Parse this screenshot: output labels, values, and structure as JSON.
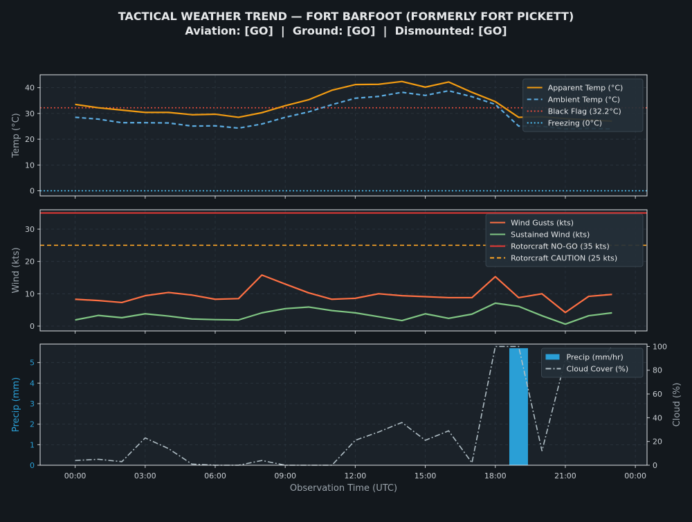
{
  "header": {
    "title": "TACTICAL WEATHER TREND — FORT BARFOOT (FORMERLY FORT PICKETT)",
    "subtitle": "Aviation: [GO]  |  Ground: [GO]  |  Dismounted: [GO]"
  },
  "colors": {
    "background": "#13181d",
    "panel": "#1b2229",
    "apparent": "#f39c12",
    "ambient": "#5dade2",
    "black_flag": "#e74c3c",
    "freezing": "#4fc3f7",
    "gusts": "#ff7043",
    "sustained": "#81c784",
    "nogo": "#e53935",
    "caution": "#ffa726",
    "precip": "#2a9fd6",
    "cloud": "#b0bec5"
  },
  "chart_data": [
    {
      "type": "line",
      "panel": "temperature",
      "ylabel": "Temp (°C)",
      "ylim": [
        -2,
        45
      ],
      "yticks": [
        0,
        10,
        20,
        30,
        40
      ],
      "grid": true,
      "legend_position": "top-right",
      "x_hours": [
        0,
        1,
        2,
        3,
        4,
        5,
        6,
        7,
        8,
        9,
        10,
        11,
        12,
        13,
        14,
        15,
        16,
        17,
        18,
        19,
        20,
        21,
        22,
        23
      ],
      "series": [
        {
          "name": "Apparent Temp (°C)",
          "style": "solid",
          "values": [
            33.5,
            32.2,
            31.3,
            30.4,
            30.4,
            29.5,
            29.7,
            28.5,
            30.3,
            33.0,
            35.3,
            39.0,
            41.2,
            41.3,
            42.4,
            40.2,
            42.2,
            38.2,
            34.6,
            28.5,
            28.7,
            28.0,
            27.5,
            27.0
          ]
        },
        {
          "name": "Ambient Temp (°C)",
          "style": "dashed",
          "values": [
            28.5,
            27.8,
            26.4,
            26.4,
            26.3,
            25.1,
            25.2,
            24.3,
            25.9,
            28.5,
            30.6,
            33.4,
            35.9,
            36.6,
            38.2,
            37.0,
            38.8,
            36.5,
            33.5,
            25.1,
            25.0,
            24.0,
            24.2,
            24.0
          ]
        }
      ],
      "thresholds": [
        {
          "name": "Black Flag (32.2°C)",
          "value": 32.2,
          "style": "dotted"
        },
        {
          "name": "Freezing (0°C)",
          "value": 0,
          "style": "dotted"
        }
      ]
    },
    {
      "type": "line",
      "panel": "wind",
      "ylabel": "Wind (kts)",
      "ylim": [
        -1.5,
        36
      ],
      "yticks": [
        0,
        10,
        20,
        30
      ],
      "grid": true,
      "legend_position": "top-right",
      "x_hours": [
        0,
        1,
        2,
        3,
        4,
        5,
        6,
        7,
        8,
        9,
        10,
        11,
        12,
        13,
        14,
        15,
        16,
        17,
        18,
        19,
        20,
        21,
        22,
        23
      ],
      "series": [
        {
          "name": "Wind Gusts (kts)",
          "style": "solid",
          "values": [
            8.3,
            7.9,
            7.3,
            9.4,
            10.4,
            9.6,
            8.3,
            8.5,
            15.8,
            13.0,
            10.3,
            8.3,
            8.6,
            10.0,
            9.4,
            9.1,
            8.8,
            8.8,
            15.3,
            8.8,
            10.0,
            4.2,
            9.2,
            9.8
          ]
        },
        {
          "name": "Sustained Wind (kts)",
          "style": "solid",
          "values": [
            1.9,
            3.3,
            2.6,
            3.8,
            3.1,
            2.2,
            2.0,
            1.9,
            4.1,
            5.4,
            5.9,
            4.8,
            4.1,
            2.9,
            1.7,
            3.8,
            2.4,
            3.7,
            7.1,
            6.1,
            3.2,
            0.6,
            3.2,
            4.1
          ]
        }
      ],
      "thresholds": [
        {
          "name": "Rotorcraft NO-GO (35 kts)",
          "value": 35,
          "style": "solid"
        },
        {
          "name": "Rotorcraft CAUTION (25 kts)",
          "value": 25,
          "style": "dashed"
        }
      ]
    },
    {
      "type": "bar",
      "panel": "precipitation",
      "ylabel": "Precip (mm)",
      "ylim": [
        0,
        5.9
      ],
      "yticks": [
        0,
        1,
        2,
        3,
        4,
        5
      ],
      "grid": true,
      "legend_position": "top-right",
      "x_hours": [
        0,
        1,
        2,
        3,
        4,
        5,
        6,
        7,
        8,
        9,
        10,
        11,
        12,
        13,
        14,
        15,
        16,
        17,
        18,
        19,
        20,
        21,
        22,
        23
      ],
      "series": [
        {
          "name": "Precip (mm/hr)",
          "values": [
            0,
            0,
            0,
            0,
            0,
            0,
            0,
            0,
            0,
            0,
            0,
            0,
            0,
            0,
            0,
            0,
            0,
            0,
            0,
            5.7,
            0,
            0,
            0,
            0
          ]
        }
      ],
      "secondary_axis": {
        "ylabel": "Cloud (%)",
        "ylim": [
          0,
          102
        ],
        "yticks": [
          0,
          20,
          40,
          60,
          80,
          100
        ],
        "series": [
          {
            "name": "Cloud Cover (%)",
            "style": "dashdot",
            "values": [
              4,
              5,
              3,
              23,
              14,
              1,
              0,
              0,
              4,
              0,
              0,
              0,
              21,
              28,
              36,
              21,
              29,
              2,
              100,
              100,
              12,
              89,
              77,
              100
            ]
          }
        ]
      },
      "xlabel": "Observation Time (UTC)",
      "xlim": [
        -1.5,
        24.5
      ],
      "xticks": [
        0,
        3,
        6,
        9,
        12,
        15,
        18,
        21,
        24
      ],
      "xtick_labels": [
        "00:00",
        "03:00",
        "06:00",
        "09:00",
        "12:00",
        "15:00",
        "18:00",
        "21:00",
        "00:00"
      ]
    }
  ]
}
